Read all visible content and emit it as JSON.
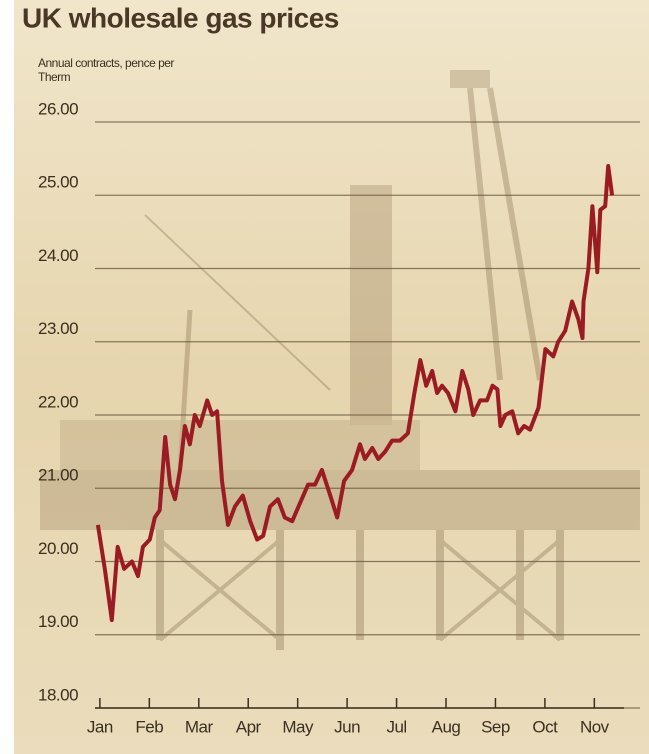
{
  "chart_data": {
    "type": "line",
    "title": "UK wholesale gas prices",
    "ylabel": "Annual contracts, pence per Therm",
    "color": "#9b1b23",
    "grid": true,
    "xlim": [
      -0.2,
      10.6
    ],
    "xticks": [
      {
        "value": 0,
        "label": "Jan"
      },
      {
        "value": 1,
        "label": "Feb"
      },
      {
        "value": 2,
        "label": "Mar"
      },
      {
        "value": 3,
        "label": "Apr"
      },
      {
        "value": 4,
        "label": "May"
      },
      {
        "value": 5,
        "label": "Jun"
      },
      {
        "value": 6,
        "label": "Jul"
      },
      {
        "value": 7,
        "label": "Aug"
      },
      {
        "value": 8,
        "label": "Sep"
      },
      {
        "value": 9,
        "label": "Oct"
      },
      {
        "value": 10,
        "label": "Nov"
      }
    ],
    "ylim": [
      18,
      26
    ],
    "yticks": [
      {
        "value": 18,
        "label": "18.00"
      },
      {
        "value": 19,
        "label": "19.00"
      },
      {
        "value": 20,
        "label": "20.00"
      },
      {
        "value": 21,
        "label": "21.00"
      },
      {
        "value": 22,
        "label": "22.00"
      },
      {
        "value": 23,
        "label": "23.00"
      },
      {
        "value": 24,
        "label": "24.00"
      },
      {
        "value": 25,
        "label": "25.00"
      },
      {
        "value": 26,
        "label": "26.00"
      }
    ],
    "x": [
      -0.04,
      0.1,
      0.24,
      0.36,
      0.49,
      0.65,
      0.77,
      0.87,
      1.01,
      1.11,
      1.21,
      1.32,
      1.42,
      1.52,
      1.62,
      1.72,
      1.82,
      1.92,
      2.02,
      2.17,
      2.27,
      2.37,
      2.47,
      2.59,
      2.73,
      2.89,
      3.04,
      3.18,
      3.3,
      3.44,
      3.6,
      3.74,
      3.89,
      4.05,
      4.21,
      4.35,
      4.49,
      4.66,
      4.8,
      4.94,
      5.1,
      5.26,
      5.36,
      5.51,
      5.63,
      5.77,
      5.91,
      6.07,
      6.23,
      6.36,
      6.48,
      6.6,
      6.72,
      6.82,
      6.92,
      7.04,
      7.19,
      7.33,
      7.45,
      7.55,
      7.69,
      7.83,
      7.94,
      8.04,
      8.1,
      8.2,
      8.34,
      8.46,
      8.58,
      8.7,
      8.87,
      9.01,
      9.17,
      9.27,
      9.41,
      9.55,
      9.68,
      9.76,
      9.78,
      9.88,
      9.96,
      10.06,
      10.12,
      10.22,
      10.28,
      10.36
    ],
    "values": [
      20.5,
      19.9,
      19.2,
      20.2,
      19.9,
      20.0,
      19.8,
      20.2,
      20.3,
      20.6,
      20.7,
      21.7,
      21.05,
      20.85,
      21.25,
      21.85,
      21.6,
      22.0,
      21.85,
      22.2,
      22.0,
      22.05,
      21.1,
      20.5,
      20.75,
      20.9,
      20.55,
      20.3,
      20.35,
      20.75,
      20.85,
      20.6,
      20.55,
      20.8,
      21.05,
      21.05,
      21.25,
      20.9,
      20.6,
      21.1,
      21.25,
      21.6,
      21.4,
      21.55,
      21.4,
      21.5,
      21.65,
      21.65,
      21.75,
      22.3,
      22.75,
      22.4,
      22.6,
      22.3,
      22.4,
      22.3,
      22.05,
      22.6,
      22.35,
      22.0,
      22.2,
      22.2,
      22.4,
      22.35,
      21.85,
      22.0,
      22.05,
      21.75,
      21.85,
      21.8,
      22.1,
      22.9,
      22.8,
      23.0,
      23.15,
      23.55,
      23.3,
      23.05,
      23.55,
      24.0,
      24.85,
      23.95,
      24.8,
      24.85,
      25.4,
      25.0
    ]
  }
}
